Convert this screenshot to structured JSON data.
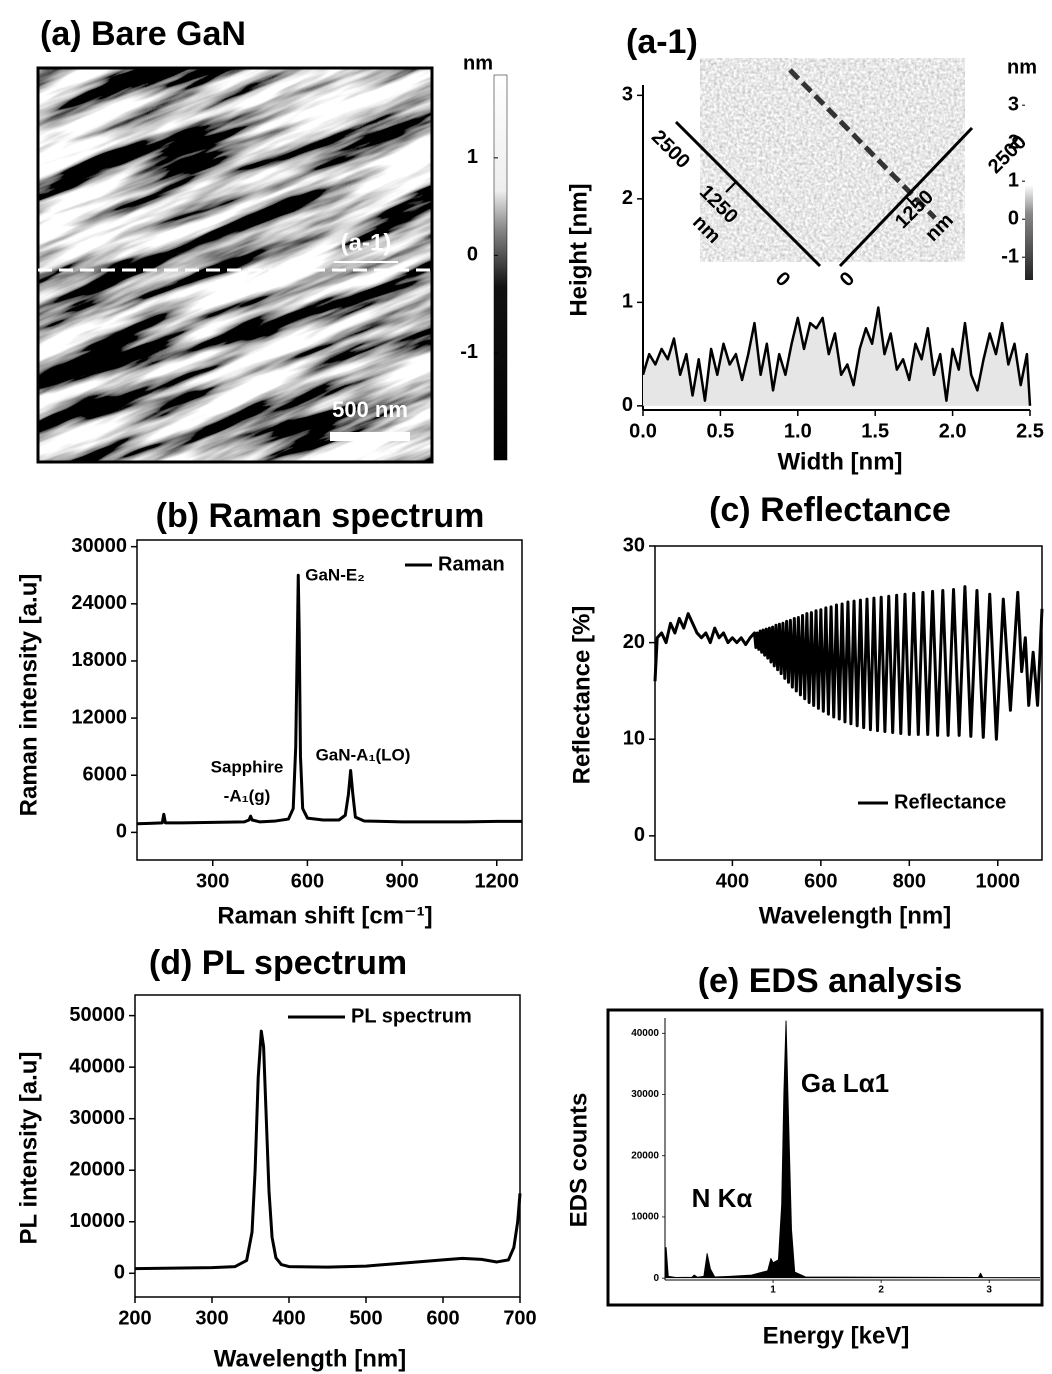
{
  "chart_data": [
    {
      "type": "image",
      "title": "(a) Bare GaN",
      "annotations": [
        "(a-1)",
        "500 nm"
      ],
      "colorbar": {
        "label": "nm",
        "lim": [
          -2.1,
          1.85
        ],
        "ticks": [
          1,
          0,
          -1
        ]
      }
    },
    {
      "type": "line",
      "title": "(a-1)",
      "xlabel": "Width [nm]",
      "ylabel": "Height [nm]",
      "x": [
        0,
        0.04,
        0.08,
        0.12,
        0.16,
        0.2,
        0.24,
        0.28,
        0.32,
        0.36,
        0.4,
        0.44,
        0.48,
        0.52,
        0.56,
        0.6,
        0.64,
        0.68,
        0.72,
        0.76,
        0.8,
        0.84,
        0.88,
        0.92,
        0.96,
        1.0,
        1.04,
        1.08,
        1.12,
        1.16,
        1.2,
        1.24,
        1.28,
        1.32,
        1.36,
        1.4,
        1.44,
        1.48,
        1.52,
        1.56,
        1.6,
        1.64,
        1.68,
        1.72,
        1.76,
        1.8,
        1.84,
        1.88,
        1.92,
        1.96,
        2.0,
        2.04,
        2.08,
        2.12,
        2.16,
        2.2,
        2.24,
        2.28,
        2.32,
        2.36,
        2.4,
        2.44,
        2.48,
        2.5
      ],
      "values": [
        0.3,
        0.5,
        0.4,
        0.55,
        0.45,
        0.65,
        0.3,
        0.5,
        0.1,
        0.45,
        0.05,
        0.55,
        0.3,
        0.6,
        0.4,
        0.5,
        0.25,
        0.5,
        0.8,
        0.3,
        0.6,
        0.15,
        0.5,
        0.3,
        0.6,
        0.85,
        0.55,
        0.8,
        0.75,
        0.85,
        0.5,
        0.7,
        0.3,
        0.4,
        0.2,
        0.55,
        0.75,
        0.6,
        0.95,
        0.5,
        0.7,
        0.35,
        0.45,
        0.25,
        0.6,
        0.45,
        0.75,
        0.3,
        0.5,
        0.05,
        0.55,
        0.35,
        0.8,
        0.3,
        0.15,
        0.45,
        0.7,
        0.5,
        0.8,
        0.4,
        0.6,
        0.2,
        0.5,
        0.0
      ],
      "color": "#000000",
      "fill_color": "#e6e6e6",
      "xlim": [
        0,
        2.5
      ],
      "ylim": [
        -0.04,
        3.1
      ],
      "xticks": [
        {
          "value": 0,
          "label": "0.0"
        },
        0.5,
        {
          "value": 1,
          "label": "1.0"
        },
        1.5,
        {
          "value": 2,
          "label": "2.0"
        },
        2.5
      ],
      "yticks": [
        0,
        1,
        2,
        3
      ],
      "inset": {
        "left_axis_labels": [
          "2500",
          "1250",
          "nm",
          "0"
        ],
        "right_axis_labels": [
          "2500",
          "1250",
          "nm",
          "0"
        ],
        "colorbar": {
          "label": "nm",
          "lim": [
            -1.6,
            3.4
          ],
          "ticks": [
            3,
            2,
            1,
            0,
            -1
          ]
        }
      }
    },
    {
      "type": "line",
      "title": "(b) Raman spectrum",
      "xlabel": "Raman shift [cm⁻¹]",
      "ylabel": "Raman intensity [a.u]",
      "x": [
        60,
        100,
        140,
        145,
        150,
        200,
        300,
        400,
        415,
        420,
        425,
        450,
        500,
        540,
        555,
        563,
        568,
        571,
        574,
        578,
        585,
        600,
        650,
        700,
        720,
        730,
        737,
        744,
        752,
        780,
        900,
        1000,
        1100,
        1200,
        1280
      ],
      "series": [
        {
          "name": "Raman",
          "color": "#000000",
          "values": [
            900,
            950,
            1000,
            1900,
            1000,
            1000,
            1050,
            1100,
            1300,
            1700,
            1300,
            1100,
            1200,
            1400,
            2500,
            9000,
            20000,
            27000,
            21000,
            8000,
            2500,
            1500,
            1300,
            1300,
            1800,
            4000,
            6500,
            4000,
            1600,
            1200,
            1100,
            1100,
            1100,
            1150,
            1150
          ]
        }
      ],
      "xlim": [
        60,
        1280
      ],
      "ylim": [
        -2900,
        30700
      ],
      "xticks": [
        300,
        600,
        900,
        1200
      ],
      "yticks": [
        0,
        6000,
        12000,
        18000,
        24000,
        30000
      ],
      "legend": "upper right",
      "annotations": [
        "GaN-E₂",
        "Sapphire",
        "-A₁(g)",
        "GaN-A₁(LO)"
      ]
    },
    {
      "type": "line",
      "title": "(c) Reflectance",
      "xlabel": "Wavelength [nm]",
      "ylabel": "Reflectance [%]",
      "x": [
        225,
        230,
        240,
        250,
        260,
        270,
        280,
        290,
        300,
        310,
        320,
        330,
        340,
        350,
        360,
        370,
        380,
        390,
        400,
        410,
        420,
        430,
        440,
        450,
        453.1,
        456.3,
        459.6,
        462.9,
        466.2,
        469.6,
        473,
        476.5,
        480,
        483.6,
        487.2,
        490.9,
        494.7,
        498.5,
        502.3,
        506.3,
        510.2,
        514.3,
        518.4,
        522.6,
        526.8,
        531.1,
        535.5,
        540,
        544.5,
        549.2,
        553.8,
        558.6,
        563.5,
        568.4,
        573.5,
        578.6,
        583.8,
        589.1,
        594.5,
        600,
        605.6,
        611.3,
        617.1,
        623.1,
        629.1,
        635.3,
        641.6,
        648,
        654.5,
        661.2,
        668,
        675,
        682.1,
        689.4,
        696.8,
        704.3,
        712.1,
        720,
        728.1,
        736.4,
        744.8,
        753.5,
        762.4,
        771.4,
        780.7,
        790.2,
        800,
        810,
        820.3,
        830.8,
        841.6,
        852.6,
        864,
        875.7,
        887.7,
        900,
        912.7,
        925.7,
        939.1,
        952.9,
        967.2,
        981.8,
        996.9,
        1012.5,
        1028.6,
        1045.2,
        1054,
        1062.3,
        1070,
        1080,
        1090,
        1100
      ],
      "series": [
        {
          "name": "Reflectance",
          "color": "#000000",
          "values": [
            16,
            20.5,
            21,
            20,
            22,
            21,
            22.5,
            21.5,
            23,
            22,
            21,
            20.5,
            21,
            20,
            21.5,
            20.5,
            21,
            20,
            20.5,
            20,
            20.5,
            19.8,
            20.5,
            21,
            19.5,
            21,
            19.3,
            21.2,
            19,
            21.3,
            18.7,
            21.4,
            18.4,
            21.5,
            18,
            21.6,
            17.6,
            21.8,
            17.2,
            21.9,
            16.8,
            22,
            16.3,
            22.2,
            15.9,
            22.3,
            15.4,
            22.5,
            15,
            22.6,
            14.6,
            22.8,
            14.2,
            23,
            13.8,
            23.1,
            13.5,
            23.3,
            13.2,
            23.4,
            12.9,
            23.6,
            12.6,
            23.7,
            12.3,
            23.9,
            12.1,
            24,
            11.8,
            24.2,
            11.6,
            24.3,
            11.4,
            24.4,
            11.2,
            24.5,
            11,
            24.6,
            10.9,
            24.7,
            10.8,
            24.8,
            10.7,
            24.9,
            10.6,
            25,
            10.5,
            25.1,
            10.5,
            25.2,
            10.5,
            25.3,
            10.4,
            25.4,
            10.4,
            25.5,
            10.4,
            25.8,
            10.3,
            25.4,
            10.2,
            25,
            10,
            24.5,
            13,
            25.2,
            17,
            20.5,
            13.5,
            19,
            13.5,
            23.5
          ]
        }
      ],
      "xlim": [
        225,
        1100
      ],
      "ylim": [
        -2.5,
        30
      ],
      "xticks": [
        400,
        600,
        800,
        1000
      ],
      "yticks": [
        0,
        10,
        20,
        30
      ],
      "legend": "lower right"
    },
    {
      "type": "line",
      "title": "(d) PL spectrum",
      "xlabel": "Wavelength [nm]",
      "ylabel": "PL intensity [a.u]",
      "x": [
        200,
        250,
        300,
        330,
        345,
        352,
        356,
        360,
        364,
        367,
        370,
        374,
        378,
        383,
        390,
        400,
        450,
        500,
        550,
        600,
        625,
        650,
        670,
        685,
        692,
        697,
        700
      ],
      "series": [
        {
          "name": "PL spectrum",
          "color": "#000000",
          "values": [
            900,
            1000,
            1100,
            1300,
            2500,
            8000,
            20000,
            38000,
            47000,
            44000,
            32000,
            16000,
            7000,
            3000,
            1700,
            1300,
            1200,
            1400,
            2000,
            2600,
            2900,
            2700,
            2200,
            2600,
            5000,
            10000,
            15500
          ]
        }
      ],
      "xlim": [
        200,
        700
      ],
      "ylim": [
        -4600,
        54000
      ],
      "xticks": [
        200,
        300,
        400,
        500,
        600,
        700
      ],
      "yticks": [
        0,
        10000,
        20000,
        30000,
        40000,
        50000
      ],
      "legend": "upper right"
    },
    {
      "type": "area",
      "title": "(e) EDS analysis",
      "xlabel": "Energy [keV]",
      "ylabel": "EDS counts",
      "x": [
        0,
        0.01,
        0.03,
        0.1,
        0.25,
        0.27,
        0.3,
        0.36,
        0.39,
        0.42,
        0.46,
        0.6,
        0.8,
        0.95,
        0.98,
        1.0,
        1.05,
        1.08,
        1.1,
        1.12,
        1.14,
        1.17,
        1.2,
        1.3,
        2.0,
        2.9,
        2.92,
        2.94,
        3.47
      ],
      "values": [
        100,
        5000,
        300,
        100,
        150,
        500,
        150,
        300,
        4000,
        1500,
        200,
        300,
        500,
        1200,
        3200,
        2500,
        3000,
        12000,
        30000,
        42000,
        28000,
        8000,
        1000,
        200,
        150,
        100,
        800,
        100,
        80
      ],
      "color": "#000000",
      "xlim": [
        0,
        3.47
      ],
      "ylim": [
        -300,
        42500
      ],
      "xticks": [
        1,
        2,
        3
      ],
      "yticks": [
        0,
        10000,
        20000,
        30000,
        40000
      ],
      "annotations": [
        "Ga Lα1",
        "N Kα"
      ]
    }
  ]
}
